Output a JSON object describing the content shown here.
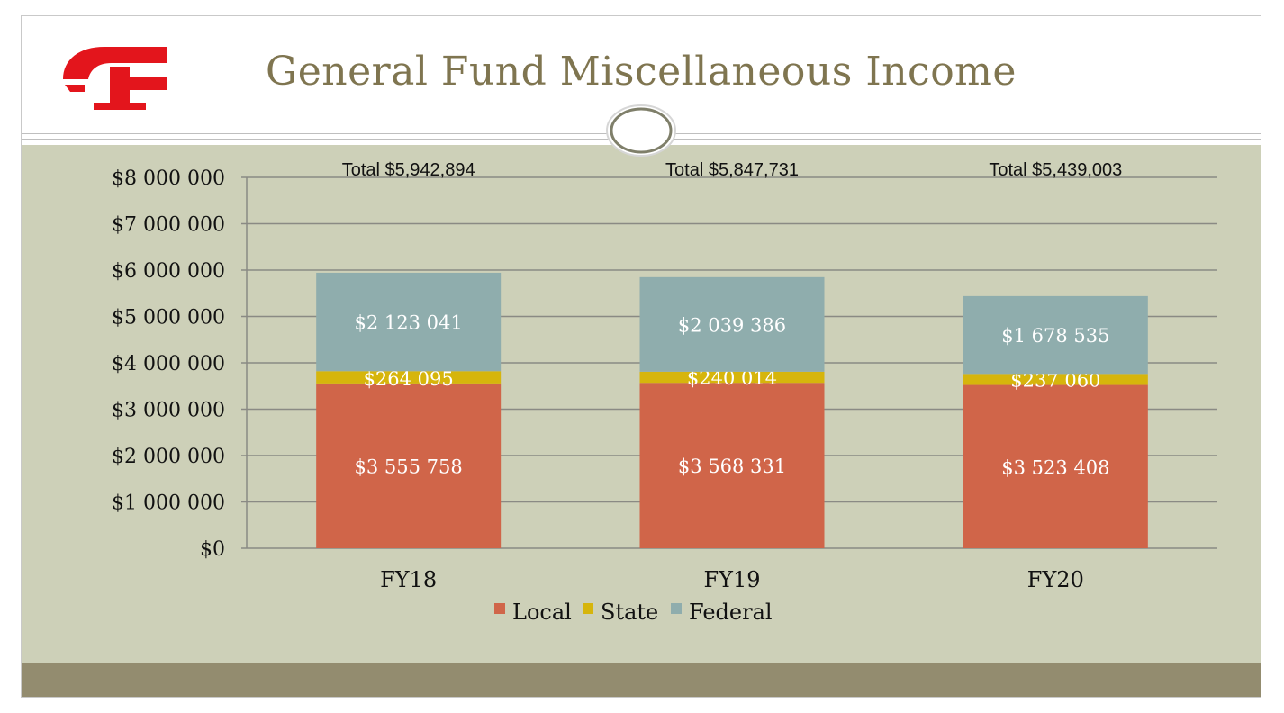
{
  "slide": {
    "title": "General Fund Miscellaneous Income"
  },
  "colors": {
    "background": "#cdd0b8",
    "footer": "#938c6f",
    "title": "#7f7550",
    "logo": "#e3151c"
  },
  "chart_data": {
    "type": "bar",
    "stacked": true,
    "categories": [
      "FY18",
      "FY19",
      "FY20"
    ],
    "series": [
      {
        "name": "Local",
        "color": "#d06549",
        "values": [
          3555758,
          3568331,
          3523408
        ],
        "labels": [
          "$3 555 758",
          "$3 568 331",
          "$3 523 408"
        ]
      },
      {
        "name": "State",
        "color": "#d6b50c",
        "values": [
          264095,
          240014,
          237060
        ],
        "labels": [
          "$264 095",
          "$240 014",
          "$237 060"
        ]
      },
      {
        "name": "Federal",
        "color": "#8fadad",
        "values": [
          2123041,
          2039386,
          1678535
        ],
        "labels": [
          "$2 123 041",
          "$2 039 386",
          "$1 678 535"
        ]
      }
    ],
    "totals": [
      "Total $5,942,894",
      "Total $5,847,731",
      "Total $5,439,003"
    ],
    "ylim": [
      0,
      8000000
    ],
    "yticks": [
      0,
      1000000,
      2000000,
      3000000,
      4000000,
      5000000,
      6000000,
      7000000,
      8000000
    ],
    "ytick_labels": [
      "$0",
      "$1 000 000",
      "$2 000 000",
      "$3 000 000",
      "$4 000 000",
      "$5 000 000",
      "$6 000 000",
      "$7 000 000",
      "$8 000 000"
    ],
    "grid": true,
    "legend": "bottom"
  }
}
